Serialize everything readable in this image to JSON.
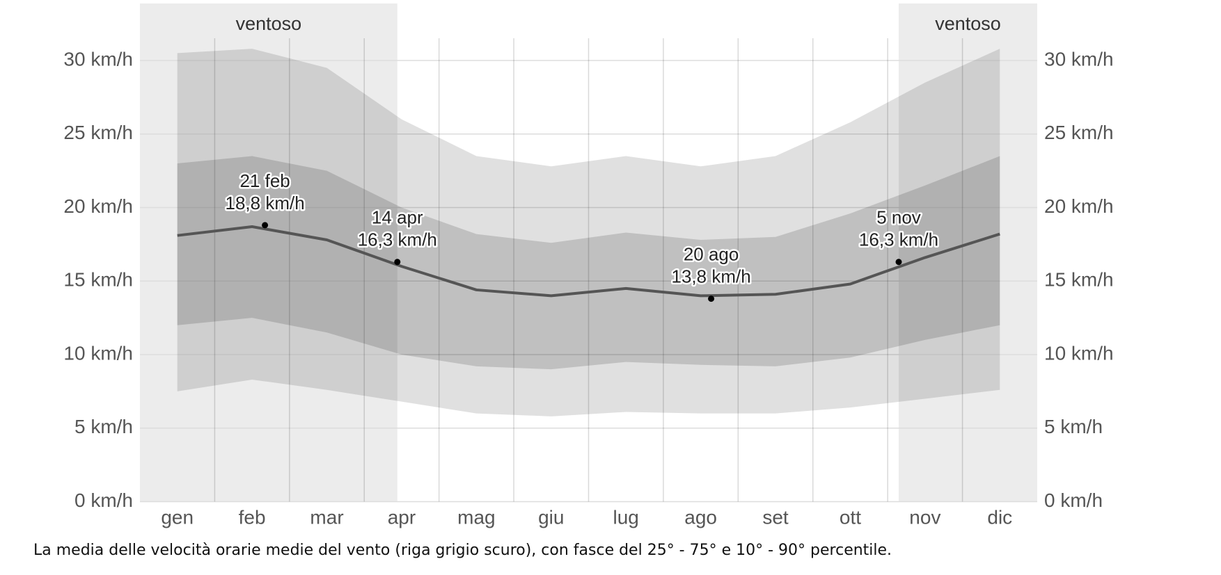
{
  "chart_data": {
    "type": "band-line",
    "categories": [
      "gen",
      "feb",
      "mar",
      "apr",
      "mag",
      "giu",
      "lug",
      "ago",
      "set",
      "ott",
      "nov",
      "dic"
    ],
    "bands": [
      {
        "low": [
          7.5,
          8.3,
          7.6,
          6.8,
          6.0,
          5.8,
          6.1,
          6.0,
          6.0,
          6.4,
          7.0,
          7.6
        ],
        "high": [
          30.5,
          30.8,
          29.5,
          26.0,
          23.5,
          22.8,
          23.5,
          22.8,
          23.5,
          25.8,
          28.5,
          30.8
        ],
        "color": "#dcdcdc"
      },
      {
        "low": [
          12.0,
          12.5,
          11.5,
          10.0,
          9.2,
          9.0,
          9.5,
          9.3,
          9.2,
          9.8,
          11.0,
          12.0
        ],
        "high": [
          23.0,
          23.5,
          22.5,
          20.0,
          18.2,
          17.6,
          18.3,
          17.8,
          18.0,
          19.6,
          21.5,
          23.5
        ],
        "color": "#bdbdbd"
      }
    ],
    "line": {
      "values": [
        18.1,
        18.7,
        17.8,
        16.0,
        14.4,
        14.0,
        14.5,
        14.0,
        14.1,
        14.8,
        16.6,
        18.2
      ],
      "color": "#555555"
    },
    "annotations": [
      {
        "date": "21 feb",
        "value": 18.8,
        "value_label": "18,8 km/h"
      },
      {
        "date": "14 apr",
        "value": 16.3,
        "value_label": "16,3 km/h"
      },
      {
        "date": "20 ago",
        "value": 13.8,
        "value_label": "13,8 km/h"
      },
      {
        "date": "5 nov",
        "value": 16.3,
        "value_label": "16,3 km/h"
      }
    ],
    "regions": [
      {
        "label": "ventoso",
        "end": "14 apr"
      },
      {
        "label": "ventoso",
        "start": "5 nov"
      }
    ],
    "ylim": [
      0,
      32
    ],
    "yticks": [
      {
        "value": 0,
        "label": "0 km/h"
      },
      {
        "value": 5,
        "label": "5 km/h"
      },
      {
        "value": 10,
        "label": "10 km/h"
      },
      {
        "value": 15,
        "label": "15 km/h"
      },
      {
        "value": 20,
        "label": "20 km/h"
      },
      {
        "value": 25,
        "label": "25 km/h"
      },
      {
        "value": 30,
        "label": "30 km/h"
      }
    ],
    "y2lim": [
      0,
      32
    ],
    "y2ticks": [
      {
        "value": 0,
        "label": "0 km/h"
      },
      {
        "value": 5,
        "label": "5 km/h"
      },
      {
        "value": 10,
        "label": "10 km/h"
      },
      {
        "value": 15,
        "label": "15 km/h"
      },
      {
        "value": 20,
        "label": "20 km/h"
      },
      {
        "value": 25,
        "label": "25 km/h"
      },
      {
        "value": 30,
        "label": "30 km/h"
      }
    ],
    "grid": true,
    "caption": "La media delle velocità orarie medie del vento (riga grigio scuro), con fasce del 25° - 75° e 10° - 90° percentile."
  }
}
